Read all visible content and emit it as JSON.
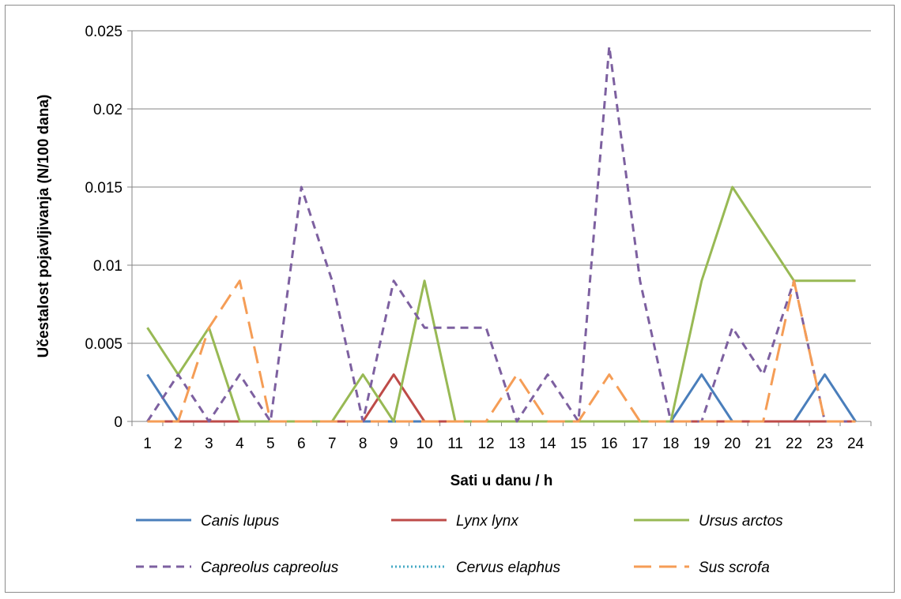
{
  "chart_data": {
    "type": "line",
    "xlabel": "Sati u danu / h",
    "ylabel": "Učestalost pojavljivanja (N/100 dana)",
    "ylim": [
      0,
      0.025
    ],
    "yticks": [
      "0",
      "0.005",
      "0.01",
      "0.015",
      "0.02",
      "0.025"
    ],
    "ytick_values": [
      0,
      0.005,
      0.01,
      0.015,
      0.02,
      0.025
    ],
    "x": [
      "1",
      "2",
      "3",
      "4",
      "5",
      "6",
      "7",
      "8",
      "9",
      "10",
      "11",
      "12",
      "13",
      "14",
      "15",
      "16",
      "17",
      "18",
      "19",
      "20",
      "21",
      "22",
      "23",
      "24"
    ],
    "grid": true,
    "legend_position": "bottom",
    "series": [
      {
        "name": "Canis lupus",
        "color": "#4a7ebb",
        "style": "solid",
        "values": [
          0.003,
          0,
          0,
          0,
          0,
          0,
          0,
          0,
          0,
          0,
          0,
          0,
          0,
          0,
          0,
          0,
          0,
          0,
          0.003,
          0,
          0,
          0,
          0.003,
          0
        ]
      },
      {
        "name": "Lynx lynx",
        "color": "#be4b48",
        "style": "solid",
        "values": [
          0,
          0,
          0,
          0,
          0,
          0,
          0,
          0,
          0.003,
          0,
          0,
          0,
          0,
          0,
          0,
          0,
          0,
          0,
          0,
          0,
          0,
          0,
          0,
          0
        ]
      },
      {
        "name": "Ursus arctos",
        "color": "#98b954",
        "style": "solid",
        "values": [
          0.006,
          0.003,
          0.006,
          0,
          0,
          0,
          0,
          0.003,
          0,
          0.009,
          0,
          0,
          0,
          0,
          0,
          0,
          0,
          0,
          0.009,
          0.015,
          0.012,
          0.009,
          0.009,
          0.009
        ]
      },
      {
        "name": "Capreolus capreolus",
        "color": "#7d60a0",
        "style": "dash",
        "values": [
          0,
          0.003,
          0,
          0.003,
          0,
          0.015,
          0.009,
          0,
          0.009,
          0.006,
          0.006,
          0.006,
          0,
          0.003,
          0,
          0.024,
          0.009,
          0,
          0,
          0.006,
          0.003,
          0.009,
          0,
          0
        ]
      },
      {
        "name": "Cervus elaphus",
        "color": "#46aac5",
        "style": "dot",
        "values": [
          0,
          0,
          0,
          0,
          0,
          0,
          0,
          0,
          0,
          0,
          0,
          0,
          0,
          0,
          0,
          0,
          0,
          0,
          0,
          0,
          0,
          0,
          0,
          0
        ]
      },
      {
        "name": "Sus scrofa",
        "color": "#f59d56",
        "style": "longdash",
        "values": [
          0,
          0,
          0.006,
          0.009,
          0,
          0,
          0,
          0,
          0,
          0,
          0,
          0,
          0.003,
          0,
          0,
          0.003,
          0,
          0,
          0,
          0,
          0,
          0.009,
          0,
          0
        ]
      }
    ]
  }
}
